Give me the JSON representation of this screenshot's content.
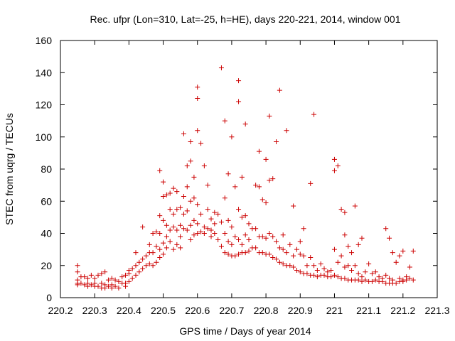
{
  "chart_data": {
    "type": "scatter",
    "title": "Rec. ufpr (Lon=310, Lat=-25, h=HE), days 220-221, 2014, window 001",
    "xlabel": "GPS time / Days of year 2014",
    "ylabel": "STEC from uqrg / TECUs",
    "xlim": [
      220.2,
      221.3
    ],
    "ylim": [
      0,
      160
    ],
    "xticks": [
      220.2,
      220.3,
      220.4,
      220.5,
      220.6,
      220.7,
      220.8,
      220.9,
      221.0,
      221.1,
      221.2,
      221.3
    ],
    "xtick_labels": [
      "220.2",
      "220.3",
      "220.4",
      "220.5",
      "220.6",
      "220.7",
      "220.8",
      "220.9",
      "221",
      "221.1",
      "221.2",
      "221.3"
    ],
    "yticks": [
      0,
      20,
      40,
      60,
      80,
      100,
      120,
      140,
      160
    ],
    "ytick_labels": [
      "0",
      "20",
      "40",
      "60",
      "80",
      "100",
      "120",
      "140",
      "160"
    ],
    "grid": false,
    "legend": "none",
    "marker": "plus",
    "color": "#cc0000",
    "points": [
      [
        220.25,
        20
      ],
      [
        220.25,
        16
      ],
      [
        220.25,
        11
      ],
      [
        220.25,
        9
      ],
      [
        220.25,
        8
      ],
      [
        220.26,
        13
      ],
      [
        220.26,
        9
      ],
      [
        220.27,
        13
      ],
      [
        220.27,
        8
      ],
      [
        220.28,
        12
      ],
      [
        220.28,
        9
      ],
      [
        220.28,
        7
      ],
      [
        220.29,
        14
      ],
      [
        220.29,
        8
      ],
      [
        220.3,
        12
      ],
      [
        220.3,
        9
      ],
      [
        220.3,
        7
      ],
      [
        220.31,
        14
      ],
      [
        220.31,
        7
      ],
      [
        220.32,
        15
      ],
      [
        220.32,
        9
      ],
      [
        220.32,
        6
      ],
      [
        220.33,
        16
      ],
      [
        220.33,
        8
      ],
      [
        220.33,
        6
      ],
      [
        220.34,
        11
      ],
      [
        220.34,
        7
      ],
      [
        220.35,
        12
      ],
      [
        220.35,
        8
      ],
      [
        220.35,
        6
      ],
      [
        220.36,
        11
      ],
      [
        220.36,
        7
      ],
      [
        220.37,
        10
      ],
      [
        220.37,
        6
      ],
      [
        220.38,
        13
      ],
      [
        220.38,
        9
      ],
      [
        220.39,
        14
      ],
      [
        220.39,
        9
      ],
      [
        220.39,
        7
      ],
      [
        220.4,
        17
      ],
      [
        220.4,
        15
      ],
      [
        220.4,
        10
      ],
      [
        220.41,
        18
      ],
      [
        220.41,
        12
      ],
      [
        220.42,
        28
      ],
      [
        220.42,
        20
      ],
      [
        220.42,
        14
      ],
      [
        220.43,
        22
      ],
      [
        220.43,
        16
      ],
      [
        220.44,
        44
      ],
      [
        220.44,
        24
      ],
      [
        220.44,
        18
      ],
      [
        220.45,
        26
      ],
      [
        220.45,
        20
      ],
      [
        220.46,
        33
      ],
      [
        220.46,
        28
      ],
      [
        220.46,
        21
      ],
      [
        220.47,
        40
      ],
      [
        220.47,
        28
      ],
      [
        220.47,
        20
      ],
      [
        220.48,
        41
      ],
      [
        220.48,
        32
      ],
      [
        220.48,
        22
      ],
      [
        220.49,
        79
      ],
      [
        220.49,
        51
      ],
      [
        220.49,
        40
      ],
      [
        220.49,
        30
      ],
      [
        220.49,
        25
      ],
      [
        220.5,
        72
      ],
      [
        220.5,
        63
      ],
      [
        220.5,
        48
      ],
      [
        220.5,
        34
      ],
      [
        220.5,
        27
      ],
      [
        220.51,
        64
      ],
      [
        220.51,
        45
      ],
      [
        220.51,
        38
      ],
      [
        220.51,
        31
      ],
      [
        220.52,
        65
      ],
      [
        220.52,
        55
      ],
      [
        220.52,
        42
      ],
      [
        220.52,
        35
      ],
      [
        220.53,
        68
      ],
      [
        220.53,
        52
      ],
      [
        220.53,
        44
      ],
      [
        220.53,
        30
      ],
      [
        220.54,
        66
      ],
      [
        220.54,
        55
      ],
      [
        220.54,
        42
      ],
      [
        220.54,
        33
      ],
      [
        220.55,
        56
      ],
      [
        220.55,
        45
      ],
      [
        220.55,
        38
      ],
      [
        220.55,
        31
      ],
      [
        220.56,
        102
      ],
      [
        220.56,
        63
      ],
      [
        220.56,
        52
      ],
      [
        220.56,
        43
      ],
      [
        220.57,
        82
      ],
      [
        220.57,
        69
      ],
      [
        220.57,
        54
      ],
      [
        220.57,
        42
      ],
      [
        220.58,
        97
      ],
      [
        220.58,
        85
      ],
      [
        220.58,
        60
      ],
      [
        220.58,
        45
      ],
      [
        220.58,
        36
      ],
      [
        220.59,
        75
      ],
      [
        220.59,
        62
      ],
      [
        220.59,
        48
      ],
      [
        220.59,
        39
      ],
      [
        220.6,
        131
      ],
      [
        220.6,
        124
      ],
      [
        220.6,
        104
      ],
      [
        220.6,
        58
      ],
      [
        220.6,
        46
      ],
      [
        220.6,
        40
      ],
      [
        220.61,
        96
      ],
      [
        220.61,
        52
      ],
      [
        220.61,
        41
      ],
      [
        220.62,
        82
      ],
      [
        220.62,
        44
      ],
      [
        220.62,
        40
      ],
      [
        220.63,
        70
      ],
      [
        220.63,
        55
      ],
      [
        220.63,
        43
      ],
      [
        220.64,
        49
      ],
      [
        220.64,
        42
      ],
      [
        220.64,
        38
      ],
      [
        220.65,
        53
      ],
      [
        220.65,
        46
      ],
      [
        220.65,
        40
      ],
      [
        220.66,
        52
      ],
      [
        220.66,
        36
      ],
      [
        220.67,
        143
      ],
      [
        220.67,
        47
      ],
      [
        220.67,
        32
      ],
      [
        220.68,
        110
      ],
      [
        220.68,
        62
      ],
      [
        220.68,
        40
      ],
      [
        220.68,
        28
      ],
      [
        220.69,
        77
      ],
      [
        220.69,
        48
      ],
      [
        220.69,
        35
      ],
      [
        220.69,
        27
      ],
      [
        220.7,
        100
      ],
      [
        220.7,
        44
      ],
      [
        220.7,
        33
      ],
      [
        220.7,
        26
      ],
      [
        220.71,
        69
      ],
      [
        220.71,
        38
      ],
      [
        220.71,
        26
      ],
      [
        220.72,
        135
      ],
      [
        220.72,
        122
      ],
      [
        220.72,
        55
      ],
      [
        220.72,
        36
      ],
      [
        220.72,
        27
      ],
      [
        220.73,
        75
      ],
      [
        220.73,
        50
      ],
      [
        220.73,
        33
      ],
      [
        220.73,
        28
      ],
      [
        220.74,
        108
      ],
      [
        220.74,
        51
      ],
      [
        220.74,
        39
      ],
      [
        220.74,
        28
      ],
      [
        220.75,
        46
      ],
      [
        220.75,
        36
      ],
      [
        220.75,
        29
      ],
      [
        220.76,
        43
      ],
      [
        220.76,
        31
      ],
      [
        220.77,
        70
      ],
      [
        220.77,
        43
      ],
      [
        220.77,
        31
      ],
      [
        220.78,
        91
      ],
      [
        220.78,
        69
      ],
      [
        220.78,
        38
      ],
      [
        220.78,
        28
      ],
      [
        220.79,
        61
      ],
      [
        220.79,
        38
      ],
      [
        220.79,
        28
      ],
      [
        220.8,
        86
      ],
      [
        220.8,
        59
      ],
      [
        220.8,
        37
      ],
      [
        220.8,
        27
      ],
      [
        220.81,
        113
      ],
      [
        220.81,
        73
      ],
      [
        220.81,
        40
      ],
      [
        220.81,
        27
      ],
      [
        220.82,
        74
      ],
      [
        220.82,
        38
      ],
      [
        220.82,
        25
      ],
      [
        220.83,
        97
      ],
      [
        220.83,
        35
      ],
      [
        220.83,
        24
      ],
      [
        220.84,
        129
      ],
      [
        220.84,
        31
      ],
      [
        220.84,
        22
      ],
      [
        220.85,
        39
      ],
      [
        220.85,
        30
      ],
      [
        220.85,
        21
      ],
      [
        220.86,
        104
      ],
      [
        220.86,
        28
      ],
      [
        220.86,
        20
      ],
      [
        220.87,
        33
      ],
      [
        220.87,
        20
      ],
      [
        220.88,
        57
      ],
      [
        220.88,
        26
      ],
      [
        220.88,
        19
      ],
      [
        220.89,
        30
      ],
      [
        220.89,
        17
      ],
      [
        220.9,
        35
      ],
      [
        220.9,
        27
      ],
      [
        220.9,
        16
      ],
      [
        220.91,
        43
      ],
      [
        220.91,
        26
      ],
      [
        220.91,
        15
      ],
      [
        220.92,
        20
      ],
      [
        220.92,
        15
      ],
      [
        220.93,
        71
      ],
      [
        220.93,
        25
      ],
      [
        220.93,
        14
      ],
      [
        220.94,
        114
      ],
      [
        220.94,
        20
      ],
      [
        220.94,
        14
      ],
      [
        220.95,
        17
      ],
      [
        220.95,
        13
      ],
      [
        220.96,
        21
      ],
      [
        220.96,
        14
      ],
      [
        220.97,
        18
      ],
      [
        220.97,
        14
      ],
      [
        220.98,
        16
      ],
      [
        220.98,
        13
      ],
      [
        220.99,
        17
      ],
      [
        220.99,
        13
      ],
      [
        221.0,
        86
      ],
      [
        221.0,
        79
      ],
      [
        221.0,
        30
      ],
      [
        221.0,
        14
      ],
      [
        221.01,
        82
      ],
      [
        221.01,
        22
      ],
      [
        221.01,
        13
      ],
      [
        221.02,
        55
      ],
      [
        221.02,
        26
      ],
      [
        221.02,
        12
      ],
      [
        221.03,
        53
      ],
      [
        221.03,
        39
      ],
      [
        221.03,
        19
      ],
      [
        221.03,
        12
      ],
      [
        221.04,
        32
      ],
      [
        221.04,
        20
      ],
      [
        221.04,
        11
      ],
      [
        221.05,
        28
      ],
      [
        221.05,
        17
      ],
      [
        221.05,
        11
      ],
      [
        221.06,
        57
      ],
      [
        221.06,
        20
      ],
      [
        221.06,
        11
      ],
      [
        221.07,
        33
      ],
      [
        221.07,
        15
      ],
      [
        221.07,
        11
      ],
      [
        221.08,
        37
      ],
      [
        221.08,
        13
      ],
      [
        221.08,
        10
      ],
      [
        221.09,
        16
      ],
      [
        221.09,
        11
      ],
      [
        221.1,
        21
      ],
      [
        221.1,
        10
      ],
      [
        221.11,
        15
      ],
      [
        221.11,
        10
      ],
      [
        221.12,
        16
      ],
      [
        221.12,
        11
      ],
      [
        221.13,
        13
      ],
      [
        221.13,
        10
      ],
      [
        221.14,
        12
      ],
      [
        221.14,
        10
      ],
      [
        221.15,
        43
      ],
      [
        221.15,
        14
      ],
      [
        221.15,
        9
      ],
      [
        221.16,
        37
      ],
      [
        221.16,
        12
      ],
      [
        221.16,
        9
      ],
      [
        221.17,
        28
      ],
      [
        221.17,
        11
      ],
      [
        221.17,
        9
      ],
      [
        221.18,
        22
      ],
      [
        221.18,
        9
      ],
      [
        221.19,
        26
      ],
      [
        221.19,
        12
      ],
      [
        221.19,
        10
      ],
      [
        221.2,
        29
      ],
      [
        221.2,
        11
      ],
      [
        221.2,
        10
      ],
      [
        221.21,
        13
      ],
      [
        221.21,
        11
      ],
      [
        221.22,
        19
      ],
      [
        221.22,
        12
      ],
      [
        221.23,
        29
      ],
      [
        221.23,
        11
      ]
    ]
  }
}
